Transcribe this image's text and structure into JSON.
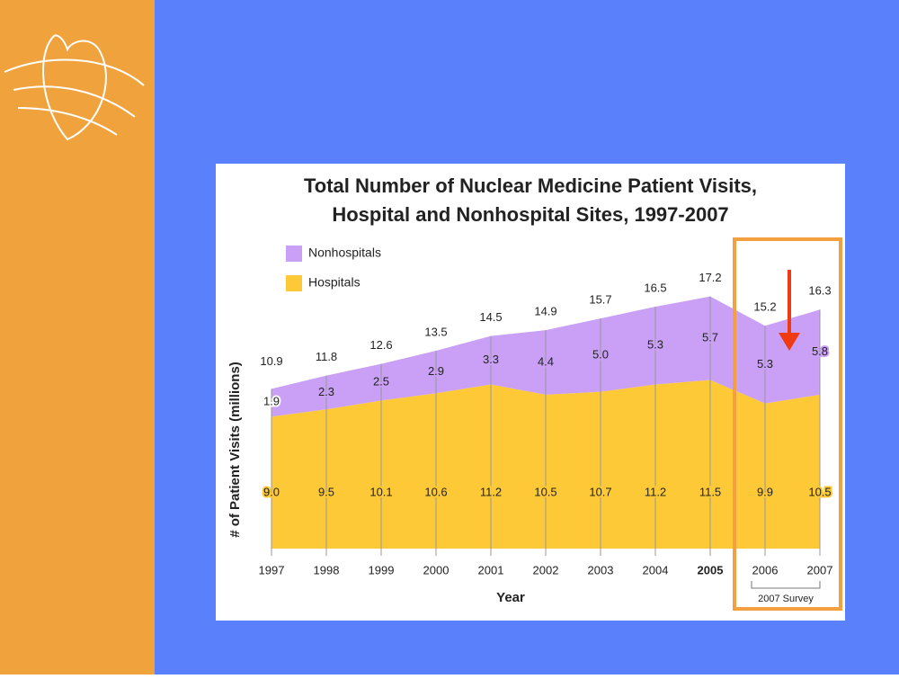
{
  "chart_data": {
    "type": "stacked-area",
    "title_lines": [
      "Total Number of Nuclear Medicine Patient Visits,",
      "Hospital and Nonhospital Sites, 1997-2007"
    ],
    "x_label": "Year",
    "y_label": "# of Patient Visits (millions)",
    "categories": [
      "1997",
      "1998",
      "1999",
      "2000",
      "2001",
      "2002",
      "2003",
      "2004",
      "2005",
      "2006",
      "2007"
    ],
    "series": [
      {
        "name": "Hospitals",
        "color": "#fdc936",
        "values": [
          9,
          9.5,
          10.1,
          10.6,
          11.2,
          10.5,
          10.7,
          11.2,
          11.5,
          9.9,
          10.5
        ],
        "value_labels": [
          "9.0",
          "9.5",
          "10.1",
          "10.6",
          "11.2",
          "10.5",
          "10.7",
          "11.2",
          "11.5",
          "9.9",
          "10.5"
        ]
      },
      {
        "name": "Nonhospitals",
        "color": "#c9a0f5",
        "values": [
          1.9,
          2.3,
          2.5,
          2.9,
          3.3,
          4.4,
          5,
          5.3,
          5.7,
          5.3,
          5.8
        ],
        "value_labels": [
          "1.9",
          "2.3",
          "2.5",
          "2.9",
          "3.3",
          "4.4",
          "5.0",
          "5.3",
          "5.7",
          "5.3",
          "5.8"
        ]
      }
    ],
    "totals": [
      10.9,
      11.8,
      12.6,
      13.5,
      14.5,
      14.9,
      15.7,
      16.5,
      17.2,
      15.2,
      16.3
    ],
    "annotation": "2007 Survey"
  }
}
